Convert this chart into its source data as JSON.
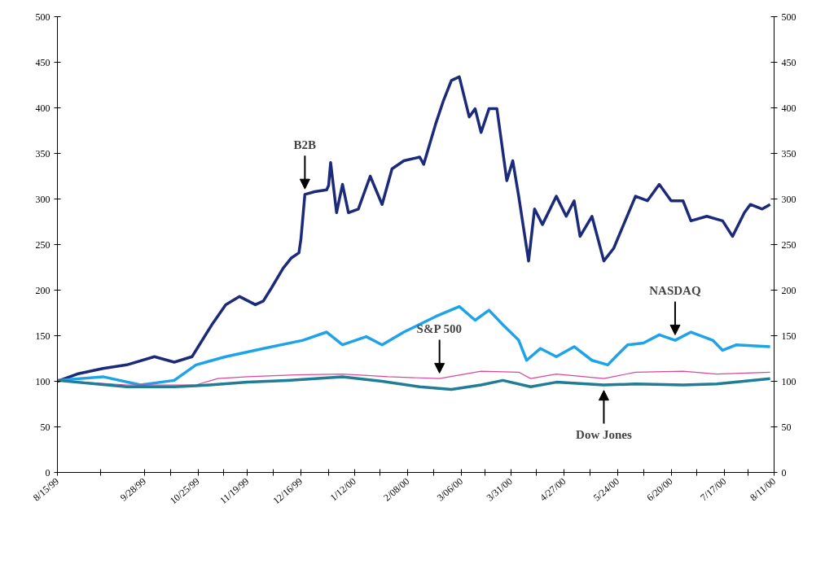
{
  "chart_data": {
    "type": "line",
    "xlim": [
      "1999-08-15",
      "2000-08-11"
    ],
    "xticks": [
      {
        "value": "1999-08-15",
        "label": "8/15/99"
      },
      {
        "value": "1999-09-06",
        "label": null
      },
      {
        "value": "1999-09-28",
        "label": "9/28/99"
      },
      {
        "value": "1999-10-11",
        "label": null
      },
      {
        "value": "1999-10-25",
        "label": "10/25/99"
      },
      {
        "value": "1999-11-07",
        "label": null
      },
      {
        "value": "1999-11-19",
        "label": "11/19/99"
      },
      {
        "value": "1999-12-02",
        "label": null
      },
      {
        "value": "1999-12-16",
        "label": "12/16/99"
      },
      {
        "value": "1999-12-30",
        "label": null
      },
      {
        "value": "2000-01-12",
        "label": "1/12/00"
      },
      {
        "value": "2000-01-25",
        "label": null
      },
      {
        "value": "2000-02-08",
        "label": "2/08/00"
      },
      {
        "value": "2000-02-21",
        "label": null
      },
      {
        "value": "2000-03-06",
        "label": "3/06/00"
      },
      {
        "value": "2000-03-18",
        "label": null
      },
      {
        "value": "2000-03-31",
        "label": "3/31/00"
      },
      {
        "value": "2000-04-13",
        "label": null
      },
      {
        "value": "2000-04-27",
        "label": "4/27/00"
      },
      {
        "value": "2000-05-10",
        "label": null
      },
      {
        "value": "2000-05-24",
        "label": "5/24/00"
      },
      {
        "value": "2000-06-06",
        "label": null
      },
      {
        "value": "2000-06-20",
        "label": "6/20/00"
      },
      {
        "value": "2000-07-03",
        "label": null
      },
      {
        "value": "2000-07-17",
        "label": "7/17/00"
      },
      {
        "value": "2000-07-29",
        "label": null
      },
      {
        "value": "2000-08-11",
        "label": "8/11/00"
      }
    ],
    "ylim": [
      0,
      500
    ],
    "yticks": [
      0,
      50,
      100,
      150,
      200,
      250,
      300,
      350,
      400,
      450,
      500
    ],
    "y2lim": [
      0,
      500
    ],
    "y2ticks": [
      0,
      50,
      100,
      150,
      200,
      250,
      300,
      350,
      400,
      450,
      500
    ],
    "grid": false,
    "marker": "none",
    "line_style": "solid",
    "series": [
      {
        "color": "#1c2a7a",
        "x": [
          "1999-08-15",
          "1999-08-25",
          "1999-09-07",
          "1999-09-19",
          "1999-10-03",
          "1999-10-13",
          "1999-10-22",
          "1999-11-01",
          "1999-11-08",
          "1999-11-15",
          "1999-11-23",
          "1999-11-27",
          "1999-12-01",
          "1999-12-07",
          "1999-12-11",
          "1999-12-15",
          "1999-12-16",
          "1999-12-18",
          "1999-12-23",
          "1999-12-29",
          "1999-12-30",
          "1999-12-31",
          "2000-01-03",
          "2000-01-06",
          "2000-01-09",
          "2000-01-14",
          "2000-01-20",
          "2000-01-26",
          "2000-01-31",
          "2000-02-06",
          "2000-02-14",
          "2000-02-16",
          "2000-02-22",
          "2000-02-26",
          "2000-03-01",
          "2000-03-05",
          "2000-03-10",
          "2000-03-13",
          "2000-03-16",
          "2000-03-20",
          "2000-03-24",
          "2000-03-29",
          "2000-04-01",
          "2000-04-04",
          "2000-04-09",
          "2000-04-12",
          "2000-04-16",
          "2000-04-23",
          "2000-04-28",
          "2000-05-02",
          "2000-05-05",
          "2000-05-11",
          "2000-05-17",
          "2000-05-22",
          "2000-05-27",
          "2000-06-02",
          "2000-06-08",
          "2000-06-14",
          "2000-06-20",
          "2000-06-26",
          "2000-06-30",
          "2000-07-08",
          "2000-07-16",
          "2000-07-21",
          "2000-07-27",
          "2000-07-30",
          "2000-08-05",
          "2000-08-09"
        ],
        "values": [
          100,
          108,
          114,
          118,
          127,
          121,
          127,
          162,
          184,
          193,
          184,
          188,
          202,
          224,
          235,
          241,
          256,
          305,
          308,
          310,
          315,
          340,
          285,
          316,
          285,
          289,
          325,
          294,
          333,
          342,
          346,
          338,
          382,
          408,
          430,
          434,
          390,
          399,
          373,
          399,
          399,
          320,
          342,
          303,
          232,
          289,
          272,
          303,
          281,
          298,
          259,
          281,
          232,
          246,
          272,
          303,
          298,
          316,
          298,
          298,
          276,
          281,
          276,
          259,
          285,
          294,
          289,
          294
        ]
      },
      {
        "color": "#1fa3e8",
        "x": [
          "1999-08-15",
          "1999-09-07",
          "1999-09-26",
          "1999-10-13",
          "1999-10-24",
          "1999-11-08",
          "1999-11-27",
          "1999-12-17",
          "1999-12-29",
          "2000-01-06",
          "2000-01-18",
          "2000-01-26",
          "2000-02-06",
          "2000-02-22",
          "2000-03-05",
          "2000-03-13",
          "2000-03-20",
          "2000-03-27",
          "2000-04-04",
          "2000-04-08",
          "2000-04-15",
          "2000-04-23",
          "2000-05-02",
          "2000-05-11",
          "2000-05-19",
          "2000-05-23",
          "2000-05-29",
          "2000-06-06",
          "2000-06-14",
          "2000-06-22",
          "2000-06-30",
          "2000-07-11",
          "2000-07-16",
          "2000-07-23",
          "2000-08-09"
        ],
        "values": [
          101,
          105,
          96,
          101,
          118,
          127,
          136,
          145,
          154,
          140,
          149,
          140,
          154,
          171,
          182,
          167,
          178,
          162,
          145,
          123,
          136,
          127,
          138,
          123,
          118,
          127,
          140,
          142,
          151,
          145,
          154,
          145,
          134,
          140,
          138
        ]
      },
      {
        "color": "#d8489a",
        "x": [
          "1999-08-15",
          "1999-09-19",
          "1999-10-24",
          "1999-11-04",
          "1999-11-19",
          "1999-12-13",
          "2000-01-06",
          "2000-01-29",
          "2000-02-24",
          "2000-03-16",
          "2000-04-04",
          "2000-04-10",
          "2000-04-23",
          "2000-05-17",
          "2000-06-02",
          "2000-06-26",
          "2000-07-13",
          "2000-08-09"
        ],
        "values": [
          101,
          96,
          96,
          103,
          105,
          107,
          108,
          105,
          103,
          111,
          110,
          103,
          108,
          103,
          110,
          111,
          108,
          110
        ]
      },
      {
        "color": "#1f7d96",
        "x": [
          "1999-08-15",
          "1999-09-19",
          "1999-10-13",
          "1999-10-24",
          "1999-11-19",
          "1999-12-09",
          "2000-01-06",
          "2000-01-26",
          "2000-02-14",
          "2000-03-01",
          "2000-03-16",
          "2000-03-27",
          "2000-04-10",
          "2000-04-23",
          "2000-05-17",
          "2000-06-02",
          "2000-06-26",
          "2000-07-13",
          "2000-08-09"
        ],
        "values": [
          101,
          94,
          94,
          95,
          99,
          101,
          105,
          100,
          94,
          91,
          96,
          101,
          94,
          99,
          96,
          97,
          96,
          97,
          103
        ]
      }
    ],
    "annotations": [
      {
        "text": "B2B",
        "x": "1999-12-18",
        "y": 305
      },
      {
        "text": "S&P 500",
        "x": "2000-02-24",
        "y": 103
      },
      {
        "text": "NASDAQ",
        "x": "2000-06-22",
        "y": 145
      },
      {
        "text": "Dow Jones",
        "x": "2000-05-17",
        "y": 96
      }
    ]
  }
}
